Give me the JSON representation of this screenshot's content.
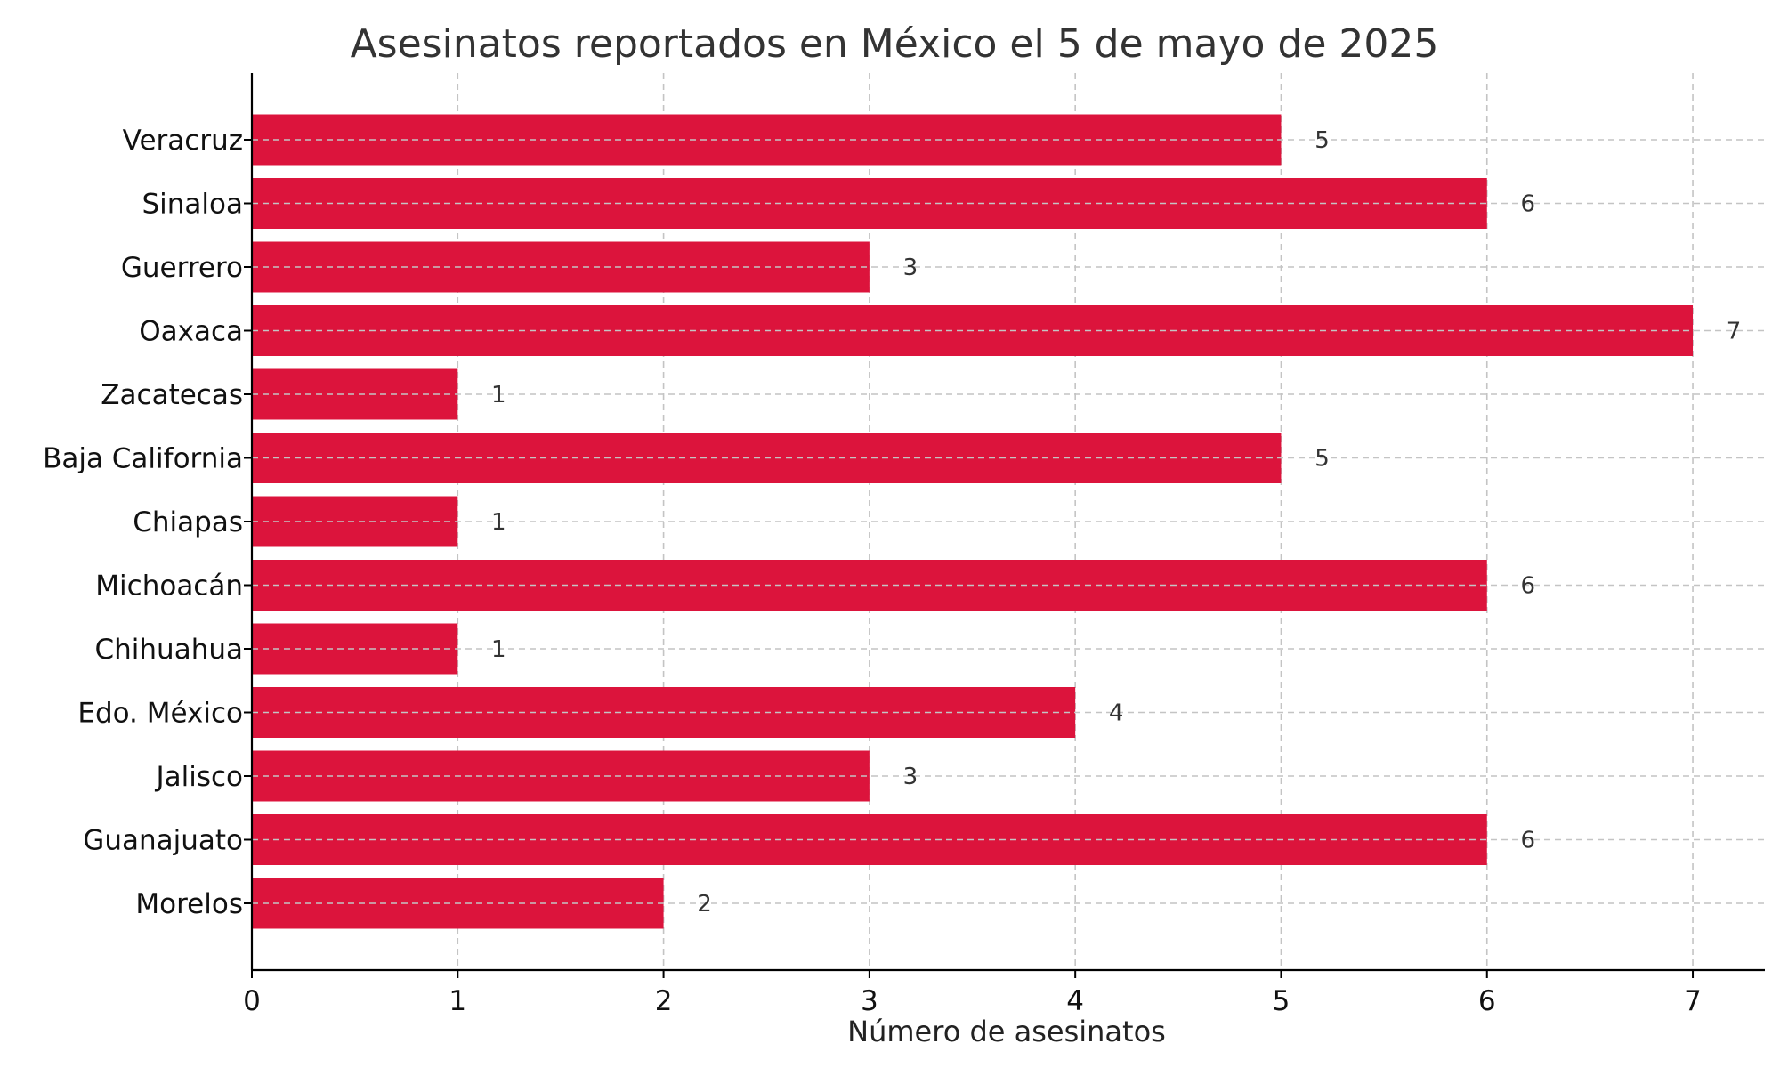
{
  "chart_data": {
    "type": "bar",
    "orientation": "horizontal",
    "title": "Asesinatos reportados en México el 5 de mayo de 2025",
    "xlabel": "Número de asesinatos",
    "ylabel": "",
    "categories": [
      "Veracruz",
      "Sinaloa",
      "Guerrero",
      "Oaxaca",
      "Zacatecas",
      "Baja California",
      "Chiapas",
      "Michoacán",
      "Chihuahua",
      "Edo. México",
      "Jalisco",
      "Guanajuato",
      "Morelos"
    ],
    "values": [
      5,
      6,
      3,
      7,
      1,
      5,
      1,
      6,
      1,
      4,
      3,
      6,
      2
    ],
    "xlim": [
      0,
      7.35
    ],
    "xticks": [
      0,
      1,
      2,
      3,
      4,
      5,
      6,
      7
    ],
    "grid": true,
    "bar_color": "#dc143c",
    "data_labels": true
  }
}
